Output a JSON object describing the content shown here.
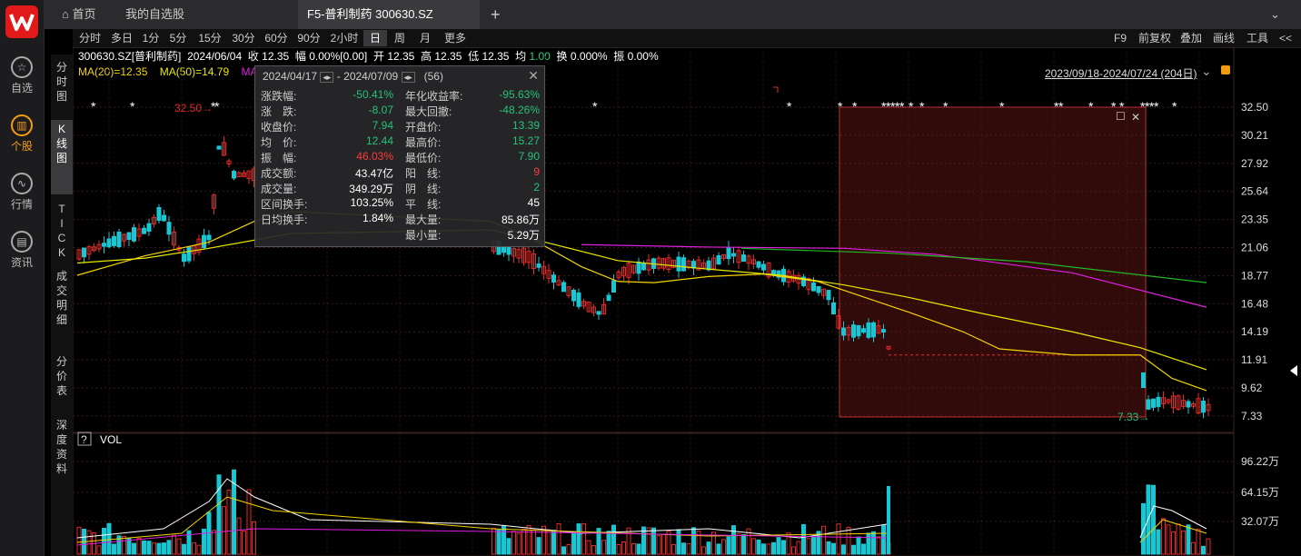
{
  "tabs": {
    "home": "首页",
    "watchlist": "我的自选股",
    "active": "F5-普利制药 300630.SZ",
    "add": "+"
  },
  "rail": [
    {
      "label": "自选",
      "icon": "star-icon",
      "glyph": "☆"
    },
    {
      "label": "个股",
      "icon": "stock-chart-icon",
      "glyph": "▥"
    },
    {
      "label": "行情",
      "icon": "market-icon",
      "glyph": "∿"
    },
    {
      "label": "资讯",
      "icon": "news-icon",
      "glyph": "▤"
    }
  ],
  "periods": [
    "分时",
    "多日",
    "1分",
    "5分",
    "15分",
    "30分",
    "60分",
    "90分",
    "2小时",
    "日",
    "周",
    "月",
    "更多"
  ],
  "active_period": "日",
  "tools": [
    "F9",
    "前复权",
    "叠加",
    "画线",
    "工具",
    "<<"
  ],
  "side_tabs": [
    "分\n时\n图",
    "K\n线\n图",
    "T\nI\nC\nK",
    "成\n交\n明\n细",
    "分\n价\n表",
    "深\n度\n资\n料"
  ],
  "info": {
    "code": "300630.SZ[普利制药]",
    "date": "2024/06/04",
    "close_l": "收",
    "close": "12.35",
    "chg_l": "幅",
    "chg": "0.00%[0.00]",
    "open_l": "开",
    "open": "12.35",
    "high_l": "高",
    "high": "12.35",
    "low_l": "低",
    "low": "12.35",
    "avg_l": "均",
    "avg": "1.00",
    "turn_l": "换",
    "turn": "0.000%",
    "amp_l": "振",
    "amp": "0.00%"
  },
  "ma": {
    "ma20": "MA(20)=12.35",
    "ma50": "MA(50)=14.79",
    "ma_more": "MA"
  },
  "range_label": "2023/09/18-2024/07/24 (204日)",
  "price_labels": [
    "32.50",
    "30.21",
    "27.92",
    "25.64",
    "23.35",
    "21.06",
    "18.77",
    "16.48",
    "14.19",
    "11.91",
    "9.62",
    "7.33"
  ],
  "annot": {
    "high": "32.50",
    "low": "7.33"
  },
  "vol_title": "VOL",
  "vol_help": "?",
  "vol_labels": [
    "96.22万",
    "64.15万",
    "32.07万"
  ],
  "popup": {
    "from": "2024/04/17",
    "to": "2024/07/09",
    "days": "(56)",
    "sep": "-",
    "left": [
      {
        "label": "涨跌幅:",
        "value": "-50.41%",
        "color": "green"
      },
      {
        "label": "涨　跌:",
        "value": "-8.07",
        "color": "green"
      },
      {
        "label": "收盘价:",
        "value": "7.94",
        "color": "green"
      },
      {
        "label": "均　价:",
        "value": "12.44",
        "color": "green"
      },
      {
        "label": "振　幅:",
        "value": "46.03%",
        "color": "red"
      },
      {
        "label": "成交额:",
        "value": "43.47亿",
        "color": "white"
      },
      {
        "label": "成交量:",
        "value": "349.29万",
        "color": "white"
      },
      {
        "label": "区间换手:",
        "value": "103.25%",
        "color": "white"
      },
      {
        "label": "日均换手:",
        "value": "1.84%",
        "color": "white"
      }
    ],
    "right": [
      {
        "label": "年化收益率:",
        "value": "-95.63%",
        "color": "green"
      },
      {
        "label": "最大回撤:",
        "value": "-48.26%",
        "color": "green"
      },
      {
        "label": "开盘价:",
        "value": "13.39",
        "color": "green"
      },
      {
        "label": "最高价:",
        "value": "15.27",
        "color": "green"
      },
      {
        "label": "最低价:",
        "value": "7.90",
        "color": "green"
      },
      {
        "label": "阳　线:",
        "value": "9",
        "color": "red"
      },
      {
        "label": "阴　线:",
        "value": "2",
        "color": "green"
      },
      {
        "label": "平　线:",
        "value": "45",
        "color": "white"
      },
      {
        "label": "最大量:",
        "value": "85.86万",
        "color": "white"
      },
      {
        "label": "最小量:",
        "value": "5.29万",
        "color": "white"
      }
    ]
  },
  "colors": {
    "up": "#e32a2a",
    "down": "#18c7d4",
    "ma20": "#f5d300",
    "ma50": "#e8e800",
    "ma_pink": "#e020e0",
    "ma_green": "#22b822",
    "accent": "#f39c12",
    "logo": "#e21919"
  }
}
